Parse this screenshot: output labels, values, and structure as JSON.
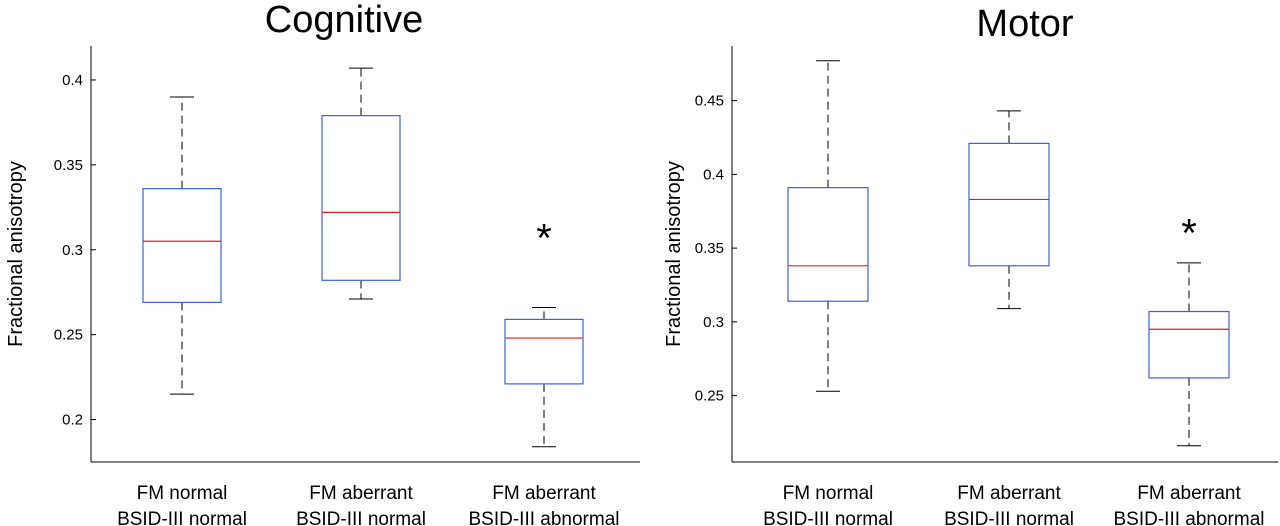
{
  "chart_data": [
    {
      "type": "box",
      "title": "Cognitive",
      "ylabel": "Fractional anisotropy",
      "xlabel": "",
      "ylim": [
        0.175,
        0.42
      ],
      "yticks": [
        "0.2",
        "0.25",
        "0.3",
        "0.35",
        "0.4"
      ],
      "categories": [
        [
          "FM normal",
          "BSID-III normal"
        ],
        [
          "FM aberrant",
          "BSID-III normal"
        ],
        [
          "FM aberrant",
          "BSID-III abnormal"
        ]
      ],
      "boxes": [
        {
          "whisker_low": 0.215,
          "q1": 0.269,
          "median": 0.305,
          "q3": 0.336,
          "whisker_high": 0.39
        },
        {
          "whisker_low": 0.271,
          "q1": 0.282,
          "median": 0.322,
          "q3": 0.379,
          "whisker_high": 0.407
        },
        {
          "whisker_low": 0.184,
          "q1": 0.221,
          "median": 0.248,
          "q3": 0.259,
          "whisker_high": 0.266
        }
      ],
      "annotations": [
        {
          "text": "*",
          "category_index": 2,
          "y": 0.312
        }
      ]
    },
    {
      "type": "box",
      "title": "Motor",
      "ylabel": "Fractional anisotropy",
      "xlabel": "",
      "ylim": [
        0.205,
        0.487
      ],
      "yticks": [
        "0.25",
        "0.3",
        "0.35",
        "0.4",
        "0.45"
      ],
      "categories": [
        [
          "FM normal",
          "BSID-III normal"
        ],
        [
          "FM aberrant",
          "BSID-III normal"
        ],
        [
          "FM aberrant",
          "BSID-III abnormal"
        ]
      ],
      "boxes": [
        {
          "whisker_low": 0.253,
          "q1": 0.314,
          "median": 0.338,
          "q3": 0.391,
          "whisker_high": 0.477
        },
        {
          "whisker_low": 0.309,
          "q1": 0.338,
          "median": 0.383,
          "q3": 0.421,
          "whisker_high": 0.443
        },
        {
          "whisker_low": 0.216,
          "q1": 0.262,
          "median": 0.295,
          "q3": 0.307,
          "whisker_high": 0.34
        }
      ],
      "annotations": [
        {
          "text": "*",
          "category_index": 2,
          "y": 0.366
        }
      ]
    }
  ],
  "colors": {
    "box": "#3f5fd8",
    "median": "#e02020",
    "whisker": "#000000",
    "axis": "#000000"
  }
}
